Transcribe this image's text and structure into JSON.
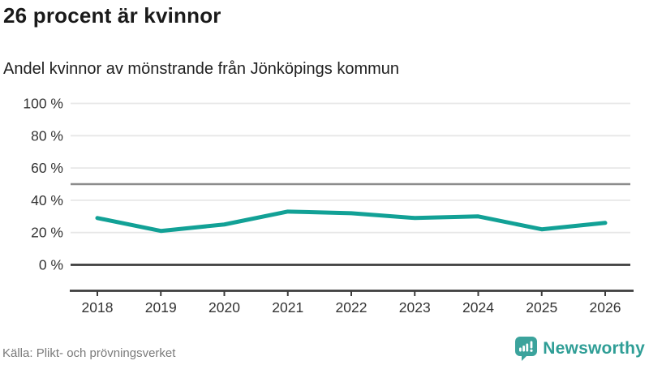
{
  "header": {
    "title": "26 procent är kvinnor",
    "subtitle": "Andel kvinnor av mönstrande från Jönköpings kommun"
  },
  "chart_data": {
    "type": "line",
    "title": "26 procent är kvinnor",
    "subtitle": "Andel kvinnor av mönstrande från Jönköpings kommun",
    "categories": [
      "2018",
      "2019",
      "2020",
      "2021",
      "2022",
      "2023",
      "2024",
      "2025",
      "2026"
    ],
    "series": [
      {
        "name": "Andel kvinnor av mönstrande",
        "values": [
          29,
          21,
          25,
          33,
          32,
          29,
          30,
          22,
          26
        ]
      }
    ],
    "unit": "%",
    "ylim": [
      0,
      100
    ],
    "yticks": [
      0,
      20,
      40,
      60,
      80,
      100
    ],
    "ytick_suffix": " %",
    "reference_line": 50,
    "grid": true,
    "legend": "none",
    "line_color": "#12a196"
  },
  "footer": {
    "source": "Källa: Plikt- och prövningsverket",
    "brand": "Newsworthy"
  },
  "colors": {
    "line": "#12a196",
    "grid": "#e7e7e7",
    "reference": "#8c8c8c",
    "axis": "#3d3d3d",
    "tick_label": "#333333",
    "title": "#1a1a1a",
    "source": "#7a7a7a",
    "logo": "#3ba39c",
    "wordmark": "#2f9e96"
  }
}
